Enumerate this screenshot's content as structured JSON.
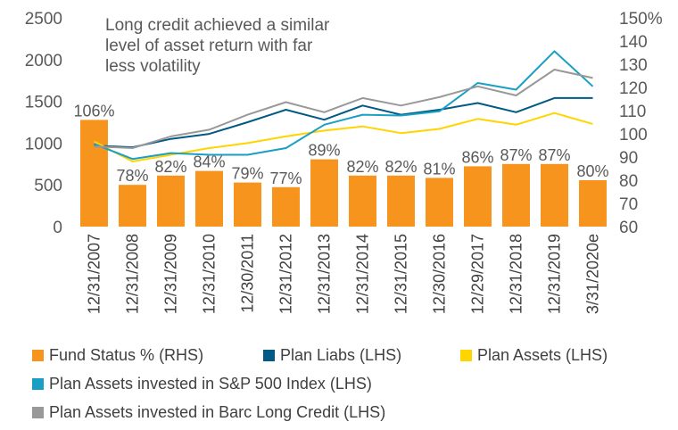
{
  "chart_data": {
    "type": "bar",
    "categories": [
      "12/31/2007",
      "12/31/2008",
      "12/31/2009",
      "12/31/2010",
      "12/30/2011",
      "12/31/2012",
      "12/31/2013",
      "12/31/2014",
      "12/31/2015",
      "12/30/2016",
      "12/29/2017",
      "12/31/2018",
      "12/31/2019",
      "3/31/2020e"
    ],
    "annotation": [
      "Long credit achieved a similar",
      "level of asset return with far",
      "less volatility"
    ],
    "left_axis": {
      "range": [
        0,
        2500
      ],
      "ticks": [
        "0",
        "500",
        "1000",
        "1500",
        "2000",
        "2500"
      ],
      "tick_values": [
        0,
        500,
        1000,
        1500,
        2000,
        2500
      ]
    },
    "right_axis": {
      "range": [
        60,
        150
      ],
      "ticks": [
        "60",
        "70",
        "80",
        "90",
        "100",
        "110",
        "120",
        "130",
        "140",
        "150%"
      ],
      "tick_values": [
        60,
        70,
        80,
        90,
        100,
        110,
        120,
        130,
        140,
        150
      ]
    },
    "series": [
      {
        "name": "Fund Status % (RHS)",
        "type": "bar",
        "axis": "right",
        "color": "#F7941D",
        "values": [
          106,
          78,
          82,
          84,
          79,
          77,
          89,
          82,
          82,
          81,
          86,
          87,
          87,
          80
        ],
        "labels": [
          "106%",
          "78%",
          "82%",
          "84%",
          "79%",
          "77%",
          "89%",
          "82%",
          "82%",
          "81%",
          "86%",
          "87%",
          "87%",
          "80%"
        ]
      },
      {
        "name": "Plan Liabs (LHS)",
        "type": "line",
        "axis": "left",
        "color": "#005A84",
        "values": [
          970,
          950,
          1050,
          1110,
          1250,
          1400,
          1280,
          1450,
          1340,
          1400,
          1480,
          1370,
          1540,
          1540
        ]
      },
      {
        "name": "Plan Assets (LHS)",
        "type": "line",
        "axis": "left",
        "color": "#FFD500",
        "values": [
          1020,
          780,
          860,
          940,
          1000,
          1080,
          1150,
          1200,
          1120,
          1170,
          1290,
          1220,
          1360,
          1230
        ]
      },
      {
        "name": "Plan Assets invested in S&P 500 Index (LHS)",
        "type": "line",
        "axis": "left",
        "color": "#1A9FC4",
        "values": [
          990,
          810,
          880,
          860,
          860,
          940,
          1220,
          1340,
          1330,
          1380,
          1720,
          1640,
          2100,
          1680
        ]
      },
      {
        "name": "Plan Assets invested in Barc Long Credit (LHS)",
        "type": "line",
        "axis": "left",
        "color": "#999999",
        "values": [
          960,
          940,
          1080,
          1160,
          1340,
          1490,
          1370,
          1540,
          1450,
          1550,
          1680,
          1570,
          1880,
          1780
        ]
      }
    ],
    "legend": [
      {
        "label": "Fund Status % (RHS)",
        "color": "#F7941D"
      },
      {
        "label": "Plan Liabs (LHS)",
        "color": "#005A84"
      },
      {
        "label": "Plan Assets (LHS)",
        "color": "#FFD500"
      },
      {
        "label": "Plan Assets invested in S&P 500 Index (LHS)",
        "color": "#1A9FC4"
      },
      {
        "label": "Plan Assets invested in Barc Long Credit (LHS)",
        "color": "#999999"
      }
    ]
  }
}
